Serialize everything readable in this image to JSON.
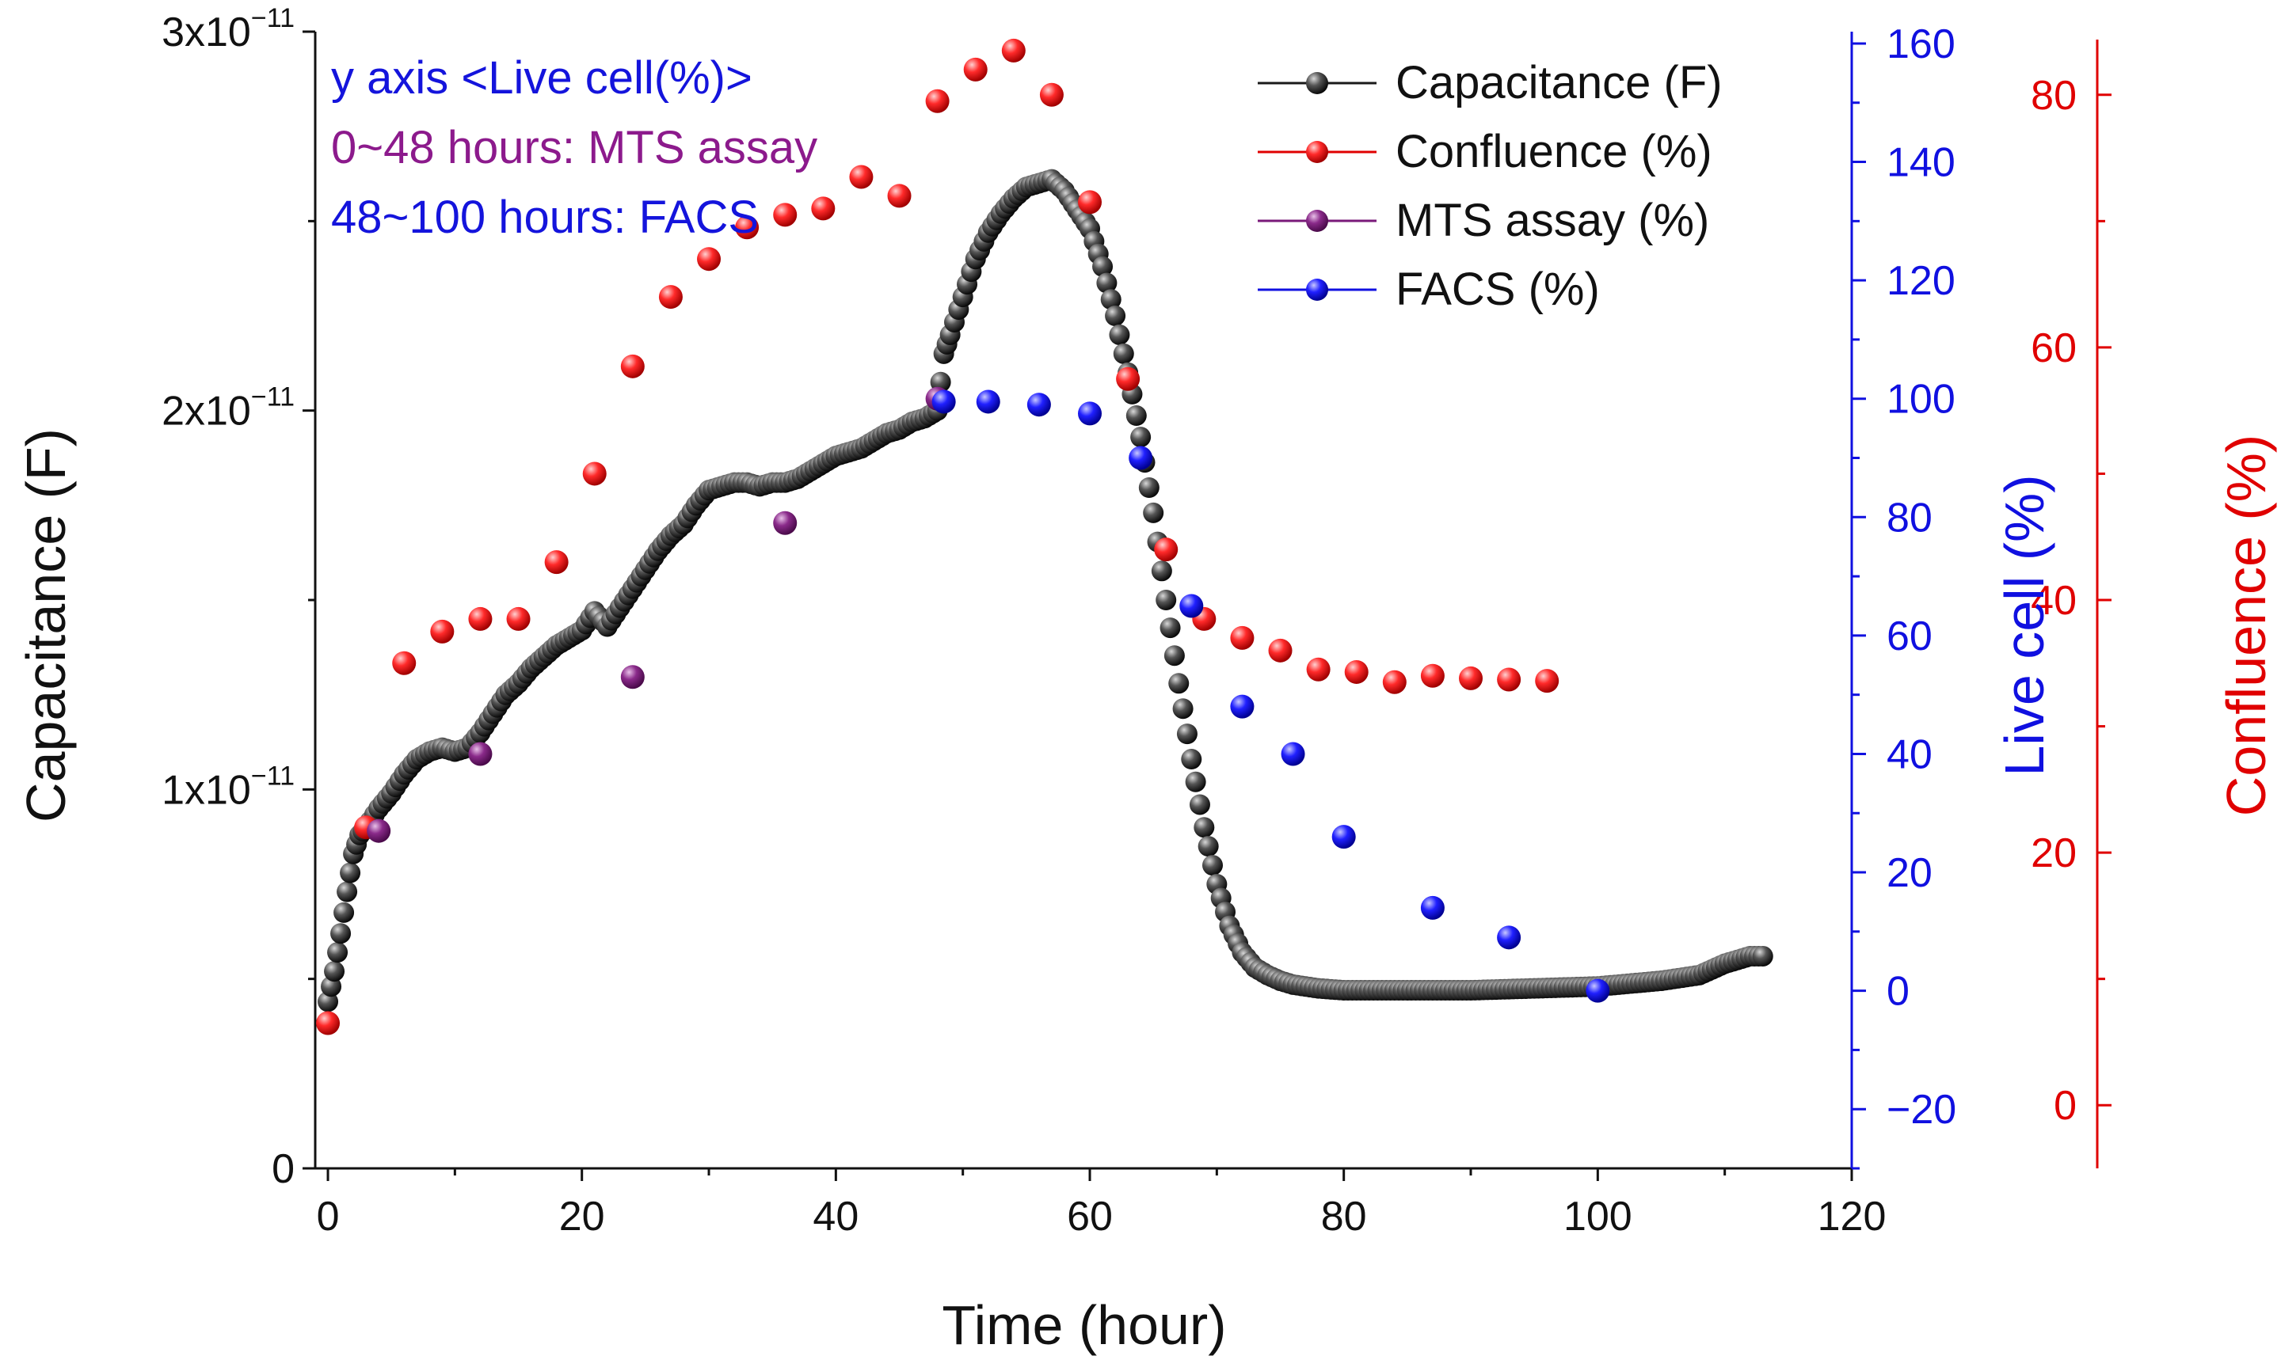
{
  "chart_data": {
    "type": "scatter",
    "xlabel": "Time (hour)",
    "ylabel_left": "Capacitance (F)",
    "ylabel_right1": "Live cell (%)",
    "ylabel_right2": "Confluence (%)",
    "xlim": [
      -1,
      120
    ],
    "ylim_left": [
      0,
      3e-11
    ],
    "ylim_right1": [
      -30,
      162
    ],
    "ylim_right2": [
      -5,
      85
    ],
    "x_ticks": [
      0,
      20,
      40,
      60,
      80,
      100,
      120
    ],
    "x_tick_labels": [
      "0",
      "20",
      "40",
      "60",
      "80",
      "100",
      "120"
    ],
    "y_left_ticks": [
      0,
      1e-11,
      2e-11,
      3e-11
    ],
    "y_left_tick_labels": [
      {
        "base": "0",
        "exp": ""
      },
      {
        "base": "1x10",
        "exp": "−11"
      },
      {
        "base": "2x10",
        "exp": "−11"
      },
      {
        "base": "3x10",
        "exp": "−11"
      }
    ],
    "y_right1_ticks": [
      -20,
      0,
      20,
      40,
      60,
      80,
      100,
      120,
      140,
      160
    ],
    "y_right1_tick_labels": [
      "−20",
      "0",
      "20",
      "40",
      "60",
      "80",
      "100",
      "120",
      "140",
      "160"
    ],
    "y_right2_ticks": [
      0,
      20,
      40,
      60,
      80
    ],
    "y_right2_tick_labels": [
      "0",
      "20",
      "40",
      "60",
      "80"
    ],
    "annotations": [
      {
        "text": "y axis <Live cell(%)>",
        "color": "#1414dc"
      },
      {
        "text": "0~48 hours: MTS assay",
        "color": "#8c1a8c"
      },
      {
        "text": "48~100 hours: FACS",
        "color": "#1414dc"
      }
    ],
    "legend_position": "top-right",
    "colors": {
      "capacitance": "#1a1a1a",
      "confluence": "#e00000",
      "mts": "#7a1a7a",
      "facs": "#1010e0",
      "live_axis": "#1010e0",
      "confluence_axis": "#e00000"
    },
    "series": [
      {
        "name": "Capacitance (F)",
        "axis": "left",
        "color": "#1a1a1a",
        "line_in_legend": true,
        "x": [
          0,
          0.5,
          1,
          1.5,
          2,
          2.5,
          3,
          4,
          5,
          6,
          7,
          8,
          9,
          10,
          11,
          12,
          13,
          14,
          15,
          16,
          17,
          18,
          19,
          20,
          21,
          22,
          23,
          24,
          25,
          26,
          27,
          28,
          29,
          30,
          31,
          32,
          33,
          34,
          35,
          36,
          37,
          38,
          39,
          40,
          41,
          42,
          43,
          44,
          45,
          46,
          47,
          48,
          48.5,
          49,
          50,
          51,
          52,
          53,
          54,
          55,
          56,
          57,
          58,
          59,
          60,
          61,
          62,
          63,
          64,
          65,
          66,
          67,
          68,
          69,
          70,
          71,
          72,
          73,
          74,
          75,
          76,
          78,
          80,
          85,
          90,
          95,
          100,
          105,
          108,
          110,
          112,
          113
        ],
        "values": [
          4.4e-12,
          5.2e-12,
          6.2e-12,
          7.3e-12,
          8.3e-12,
          8.8e-12,
          9e-12,
          9.5e-12,
          9.9e-12,
          1.04e-11,
          1.08e-11,
          1.1e-11,
          1.11e-11,
          1.1e-11,
          1.11e-11,
          1.15e-11,
          1.2e-11,
          1.25e-11,
          1.28e-11,
          1.32e-11,
          1.35e-11,
          1.38e-11,
          1.4e-11,
          1.42e-11,
          1.47e-11,
          1.43e-11,
          1.48e-11,
          1.53e-11,
          1.58e-11,
          1.63e-11,
          1.67e-11,
          1.7e-11,
          1.75e-11,
          1.79e-11,
          1.8e-11,
          1.81e-11,
          1.81e-11,
          1.8e-11,
          1.81e-11,
          1.81e-11,
          1.82e-11,
          1.84e-11,
          1.86e-11,
          1.88e-11,
          1.89e-11,
          1.9e-11,
          1.92e-11,
          1.94e-11,
          1.95e-11,
          1.97e-11,
          1.98e-11,
          2e-11,
          2.15e-11,
          2.2e-11,
          2.3e-11,
          2.4e-11,
          2.47e-11,
          2.52e-11,
          2.56e-11,
          2.59e-11,
          2.6e-11,
          2.61e-11,
          2.58e-11,
          2.53e-11,
          2.48e-11,
          2.38e-11,
          2.25e-11,
          2.1e-11,
          1.93e-11,
          1.73e-11,
          1.5e-11,
          1.28e-11,
          1.08e-11,
          9e-12,
          7.5e-12,
          6.4e-12,
          5.7e-12,
          5.3e-12,
          5.1e-12,
          4.95e-12,
          4.85e-12,
          4.75e-12,
          4.7e-12,
          4.7e-12,
          4.7e-12,
          4.75e-12,
          4.8e-12,
          4.95e-12,
          5.1e-12,
          5.4e-12,
          5.6e-12,
          5.6e-12
        ]
      },
      {
        "name": "Confluence (%)",
        "axis": "right2",
        "color": "#e00000",
        "line_in_legend": true,
        "x": [
          0,
          3,
          6,
          9,
          12,
          15,
          18,
          21,
          24,
          27,
          30,
          33,
          36,
          39,
          42,
          45,
          48,
          51,
          54,
          57,
          60,
          63,
          66,
          69,
          72,
          75,
          78,
          81,
          84,
          87,
          90,
          93,
          96
        ],
        "values": [
          6.5,
          22,
          35,
          37.5,
          38.5,
          38.5,
          43,
          50,
          58.5,
          64,
          67,
          69.5,
          70.5,
          71,
          73.5,
          72,
          79.5,
          82,
          83.5,
          80,
          71.5,
          57.5,
          44,
          38.5,
          37,
          36,
          34.5,
          34.3,
          33.5,
          34,
          33.8,
          33.7,
          33.6
        ]
      },
      {
        "name": "MTS assay (%)",
        "axis": "right1",
        "color": "#7a1a7a",
        "line_in_legend": true,
        "x": [
          4,
          12,
          24,
          36,
          48
        ],
        "values": [
          27,
          40,
          53,
          79,
          100
        ]
      },
      {
        "name": "FACS (%)",
        "axis": "right1",
        "color": "#1010e0",
        "line_in_legend": true,
        "x": [
          48.5,
          52,
          56,
          60,
          64,
          68,
          72,
          76,
          80,
          87,
          93,
          100
        ],
        "values": [
          99.5,
          99.5,
          99,
          97.5,
          90,
          65,
          48,
          40,
          26,
          14,
          9,
          0
        ]
      }
    ]
  }
}
